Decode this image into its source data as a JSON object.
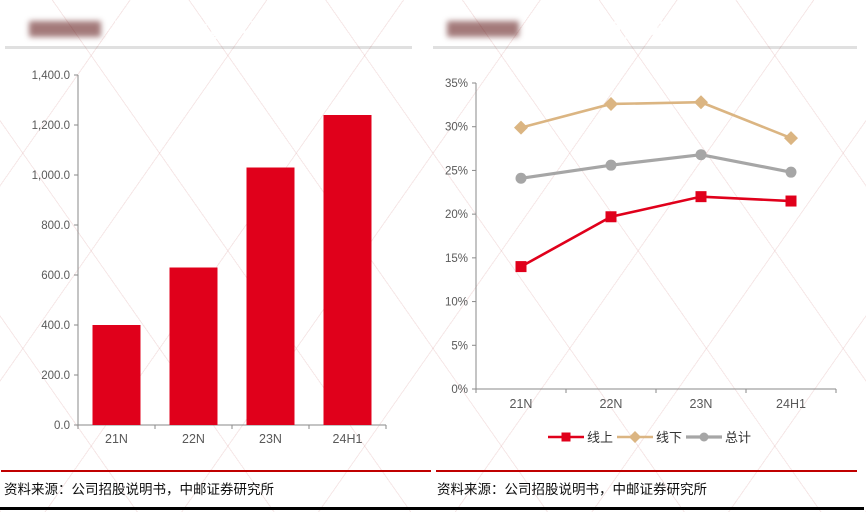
{
  "colors": {
    "banner_red": "#CE302D",
    "bar_red": "#E0001B",
    "line_red": "#E0001B",
    "tan": "#DBB582",
    "gray": "#A6A6A6",
    "axis": "#8A8A8A",
    "tick_label": "#595959",
    "source_rule_red": "#C00000",
    "source_text": "#0D0D0D"
  },
  "left_panel": {
    "title": "公司会员数量（万人）",
    "source": "资料来源：公司招股说明书，中邮证券研究所",
    "chart_data": {
      "type": "bar",
      "title": "公司会员数量（万人）",
      "categories": [
        "21N",
        "22N",
        "23N",
        "24H1"
      ],
      "values": [
        400.0,
        630.0,
        1030.0,
        1240.0
      ],
      "xlabel": "",
      "ylabel": "",
      "ylim": [
        0,
        1400
      ],
      "ytick_step": 200,
      "ytick_format": "thousands_one_decimal",
      "grid": false,
      "bar_color": "#E0001B"
    }
  },
  "right_panel": {
    "title": "公司复购率及变化",
    "source": "资料来源：公司招股说明书，中邮证券研究所",
    "chart_data": {
      "type": "line",
      "title": "公司复购率及变化",
      "categories": [
        "21N",
        "22N",
        "23N",
        "24H1"
      ],
      "series": [
        {
          "name": "线上",
          "color": "#E0001B",
          "marker": "square",
          "width": 2.6,
          "z": 3,
          "values": [
            14.0,
            19.7,
            22.0,
            21.5
          ]
        },
        {
          "name": "线下",
          "color": "#DBB582",
          "marker": "diamond",
          "width": 2.6,
          "z": 1,
          "values": [
            29.9,
            32.6,
            32.8,
            28.7
          ]
        },
        {
          "name": "总计",
          "color": "#A6A6A6",
          "marker": "circle",
          "width": 3.2,
          "z": 2,
          "values": [
            24.1,
            25.6,
            26.8,
            24.8
          ]
        }
      ],
      "xlabel": "",
      "ylabel": "",
      "ylim": [
        0,
        35
      ],
      "ytick_step": 5,
      "ytick_format": "percent",
      "grid": false,
      "legend_position": "bottom"
    }
  }
}
